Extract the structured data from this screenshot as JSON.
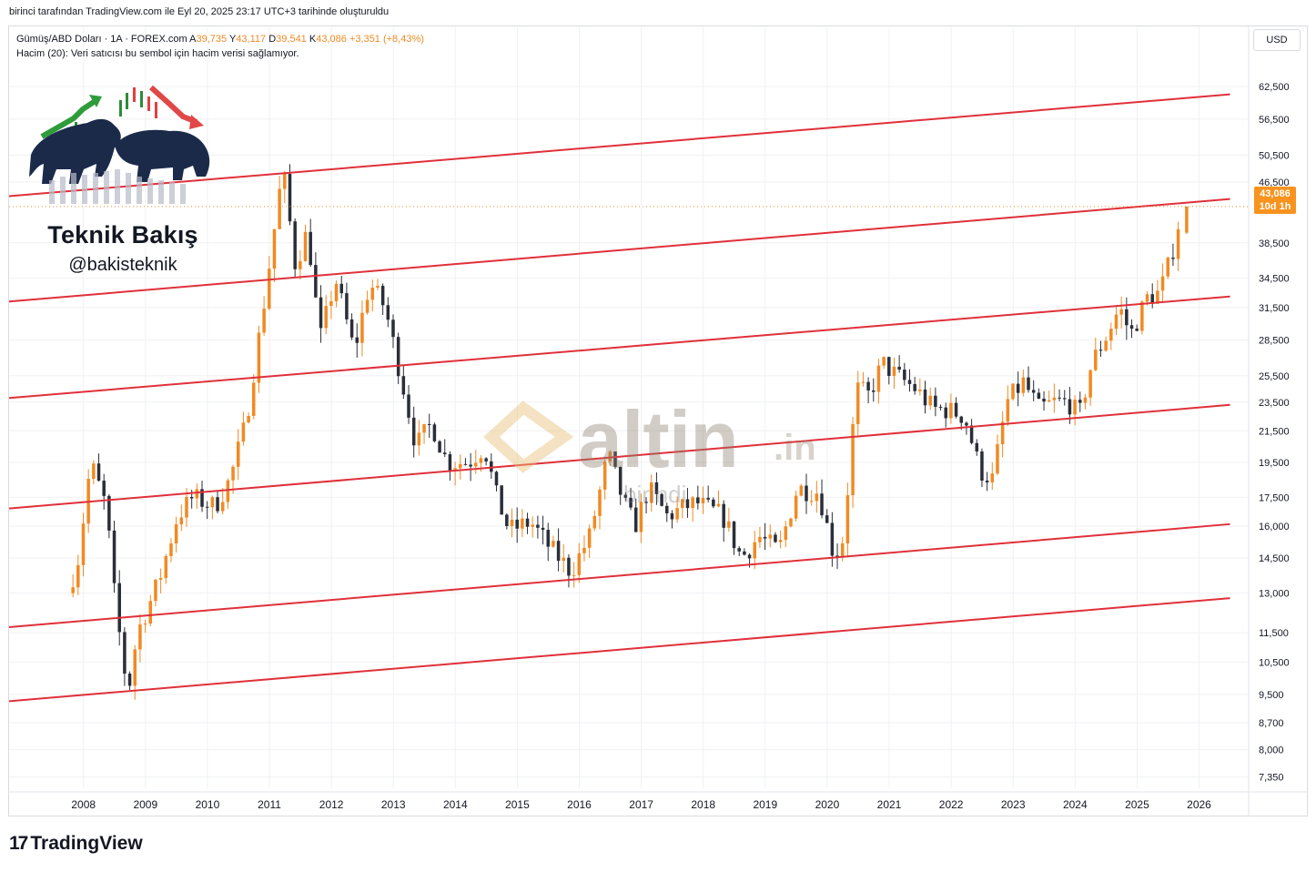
{
  "caption": "birinci tarafından TradingView.com ile Eyl 20, 2025 23:17 UTC+3 tarihinde oluşturuldu",
  "legend": {
    "symbol": "Gümüş/ABD Doları · 1A · FOREX.com",
    "open_label": "A",
    "open": "39,735",
    "high_label": "Y",
    "high": "43,117",
    "low_label": "D",
    "low": "39,541",
    "close_label": "K",
    "close": "43,086",
    "change": "+3,351 (+8,43%)",
    "volume_note": "Hacim (20): Veri satıcısı bu sembol için hacim verisi sağlamıyor."
  },
  "currency": "USD",
  "last_price": {
    "value": "43,086",
    "countdown": "10d 1h"
  },
  "branding": {
    "title": "Teknik Bakış",
    "handle": "@bakisteknik"
  },
  "watermark": {
    "word": "altin",
    "suffix": ".in",
    "sub": "birindi"
  },
  "footer_logo": {
    "mark": "17",
    "text": "TradingView"
  },
  "colors": {
    "up": "#f08a24",
    "down": "#2a2e39",
    "channel": "#e0303a",
    "bull": "#1c2a4a"
  },
  "chart_data": {
    "type": "candlestick",
    "scale": "log",
    "interval": "1M",
    "y_ticks": [
      62.5,
      56.5,
      50.5,
      46.5,
      38.5,
      34.5,
      31.5,
      28.5,
      25.5,
      23.5,
      21.5,
      19.5,
      17.5,
      16.0,
      14.5,
      13.0,
      11.5,
      10.5,
      9.5,
      8.7,
      8.0,
      7.35
    ],
    "y_tick_labels": [
      "62,500",
      "56,500",
      "50,500",
      "46,500",
      "38,500",
      "34,500",
      "31,500",
      "28,500",
      "25,500",
      "23,500",
      "21,500",
      "19,500",
      "17,500",
      "16,000",
      "14,500",
      "13,000",
      "11,500",
      "10,500",
      "9,500",
      "8,700",
      "8,000",
      "7,350"
    ],
    "x_tick_years": [
      2008,
      2009,
      2010,
      2011,
      2012,
      2013,
      2014,
      2015,
      2016,
      2017,
      2018,
      2019,
      2020,
      2021,
      2022,
      2023,
      2024,
      2025,
      2026
    ],
    "x_tick_labels": [
      "2008",
      "2009",
      "2010",
      "2011",
      "2012",
      "2013",
      "2014",
      "2015",
      "2016",
      "2017",
      "2018",
      "2019",
      "2020",
      "2021",
      "2022",
      "2023",
      "2024",
      "2025",
      "2026"
    ],
    "x_range": [
      2006.8,
      2026.8
    ],
    "y_range": [
      7.1,
      69
    ],
    "channel_lines": [
      {
        "from": [
          2006.8,
          9.3
        ],
        "to": [
          2026.5,
          12.8
        ]
      },
      {
        "from": [
          2006.8,
          11.7
        ],
        "to": [
          2026.5,
          16.1
        ]
      },
      {
        "from": [
          2006.8,
          16.9
        ],
        "to": [
          2026.5,
          23.3
        ]
      },
      {
        "from": [
          2006.8,
          23.8
        ],
        "to": [
          2026.5,
          32.6
        ]
      },
      {
        "from": [
          2006.8,
          32.1
        ],
        "to": [
          2026.5,
          44.1
        ]
      },
      {
        "from": [
          2006.8,
          44.5
        ],
        "to": [
          2026.5,
          61.0
        ]
      }
    ],
    "anchors": [
      [
        2007.83,
        13.0
      ],
      [
        2008.0,
        14.5
      ],
      [
        2008.2,
        19.5
      ],
      [
        2008.45,
        17.0
      ],
      [
        2008.6,
        12.5
      ],
      [
        2008.8,
        9.5
      ],
      [
        2008.95,
        11.5
      ],
      [
        2009.3,
        13.5
      ],
      [
        2009.6,
        16.5
      ],
      [
        2009.85,
        17.5
      ],
      [
        2010.2,
        17.0
      ],
      [
        2010.45,
        18.5
      ],
      [
        2010.7,
        22.0
      ],
      [
        2010.95,
        30.0
      ],
      [
        2011.3,
        48.5
      ],
      [
        2011.5,
        36.0
      ],
      [
        2011.7,
        40.0
      ],
      [
        2011.9,
        28.5
      ],
      [
        2012.15,
        34.5
      ],
      [
        2012.45,
        27.5
      ],
      [
        2012.7,
        34.0
      ],
      [
        2012.95,
        31.5
      ],
      [
        2013.25,
        24.5
      ],
      [
        2013.45,
        20.5
      ],
      [
        2013.7,
        22.0
      ],
      [
        2013.95,
        19.5
      ],
      [
        2014.3,
        19.5
      ],
      [
        2014.55,
        20.5
      ],
      [
        2014.75,
        17.5
      ],
      [
        2014.95,
        15.8
      ],
      [
        2015.3,
        16.2
      ],
      [
        2015.6,
        15.0
      ],
      [
        2015.95,
        13.9
      ],
      [
        2016.25,
        15.5
      ],
      [
        2016.55,
        20.0
      ],
      [
        2016.8,
        17.2
      ],
      [
        2016.98,
        16.0
      ],
      [
        2017.2,
        18.0
      ],
      [
        2017.5,
        16.5
      ],
      [
        2017.8,
        17.0
      ],
      [
        2017.98,
        17.2
      ],
      [
        2018.4,
        16.5
      ],
      [
        2018.7,
        14.5
      ],
      [
        2018.98,
        15.5
      ],
      [
        2019.3,
        14.8
      ],
      [
        2019.6,
        18.0
      ],
      [
        2019.95,
        17.8
      ],
      [
        2020.2,
        14.5
      ],
      [
        2020.35,
        15.5
      ],
      [
        2020.55,
        24.5
      ],
      [
        2020.75,
        24.0
      ],
      [
        2020.98,
        26.5
      ],
      [
        2021.2,
        25.5
      ],
      [
        2021.5,
        24.5
      ],
      [
        2021.8,
        23.0
      ],
      [
        2021.98,
        23.0
      ],
      [
        2022.3,
        22.5
      ],
      [
        2022.55,
        19.0
      ],
      [
        2022.75,
        18.5
      ],
      [
        2022.98,
        23.5
      ],
      [
        2023.25,
        25.0
      ],
      [
        2023.5,
        23.0
      ],
      [
        2023.75,
        23.5
      ],
      [
        2023.98,
        23.5
      ],
      [
        2024.15,
        22.5
      ],
      [
        2024.35,
        26.5
      ],
      [
        2024.6,
        29.0
      ],
      [
        2024.8,
        31.5
      ],
      [
        2024.98,
        29.0
      ],
      [
        2025.25,
        32.5
      ],
      [
        2025.45,
        33.0
      ],
      [
        2025.62,
        36.5
      ],
      [
        2025.72,
        39.7
      ],
      [
        2025.8,
        43.086
      ]
    ],
    "last_candle": {
      "open": 39.735,
      "high": 43.117,
      "low": 39.541,
      "close": 43.086
    }
  }
}
